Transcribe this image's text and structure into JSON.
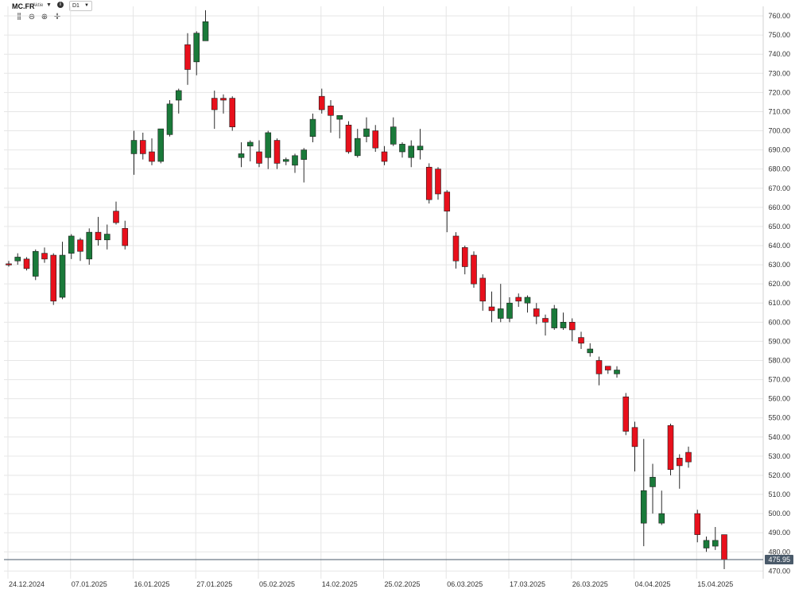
{
  "header": {
    "symbol": "MC.FR",
    "symbol_type": "Aktie",
    "timeframe": "D1",
    "tools": [
      "indicators-icon",
      "zoom-out-icon",
      "zoom-in-icon",
      "crosshair-icon"
    ]
  },
  "colors": {
    "up": "#1a7a3a",
    "down": "#e8101c",
    "grid": "#e6e6e6",
    "last_price": "#4a5a6a"
  },
  "chart_data": {
    "type": "candlestick",
    "title": "",
    "xlabel": "",
    "ylabel": "",
    "ylim": [
      466,
      765
    ],
    "y_ticks": [
      "470.00",
      "480.00",
      "490.00",
      "500.00",
      "510.00",
      "520.00",
      "530.00",
      "540.00",
      "550.00",
      "560.00",
      "570.00",
      "580.00",
      "590.00",
      "600.00",
      "610.00",
      "620.00",
      "630.00",
      "640.00",
      "650.00",
      "660.00",
      "670.00",
      "680.00",
      "690.00",
      "700.00",
      "710.00",
      "720.00",
      "730.00",
      "740.00",
      "750.00",
      "760.00"
    ],
    "x_tick_labels": [
      {
        "label": "24.12.2024",
        "index": 0
      },
      {
        "label": "07.01.2025",
        "index": 7
      },
      {
        "label": "16.01.2025",
        "index": 14
      },
      {
        "label": "27.01.2025",
        "index": 21
      },
      {
        "label": "05.02.2025",
        "index": 28
      },
      {
        "label": "14.02.2025",
        "index": 35
      },
      {
        "label": "25.02.2025",
        "index": 42
      },
      {
        "label": "06.03.2025",
        "index": 49
      },
      {
        "label": "17.03.2025",
        "index": 56
      },
      {
        "label": "26.03.2025",
        "index": 63
      },
      {
        "label": "04.04.2025",
        "index": 70
      },
      {
        "label": "15.04.2025",
        "index": 77
      }
    ],
    "last_price": "475.95",
    "last_value": 475.95,
    "candles": [
      {
        "o": 630.5,
        "h": 632,
        "l": 629,
        "c": 630.0
      },
      {
        "o": 632,
        "h": 636,
        "l": 630,
        "c": 634
      },
      {
        "o": 633,
        "h": 634,
        "l": 627,
        "c": 628
      },
      {
        "o": 624,
        "h": 638,
        "l": 622,
        "c": 637
      },
      {
        "o": 636,
        "h": 639,
        "l": 631,
        "c": 633
      },
      {
        "o": 635,
        "h": 636,
        "l": 609,
        "c": 611
      },
      {
        "o": 613,
        "h": 642,
        "l": 612,
        "c": 635
      },
      {
        "o": 636,
        "h": 646,
        "l": 633,
        "c": 645
      },
      {
        "o": 643,
        "h": 644,
        "l": 632,
        "c": 637
      },
      {
        "o": 633,
        "h": 649,
        "l": 630,
        "c": 647
      },
      {
        "o": 647,
        "h": 655,
        "l": 640,
        "c": 643
      },
      {
        "o": 643,
        "h": 651,
        "l": 638,
        "c": 646
      },
      {
        "o": 658,
        "h": 663,
        "l": 651,
        "c": 652
      },
      {
        "o": 649,
        "h": 653,
        "l": 638,
        "c": 640
      },
      {
        "o": 688,
        "h": 700,
        "l": 677,
        "c": 695
      },
      {
        "o": 695,
        "h": 699,
        "l": 685,
        "c": 688
      },
      {
        "o": 689,
        "h": 696,
        "l": 682,
        "c": 684
      },
      {
        "o": 684,
        "h": 701,
        "l": 683,
        "c": 701
      },
      {
        "o": 698,
        "h": 716,
        "l": 697,
        "c": 714
      },
      {
        "o": 716,
        "h": 722,
        "l": 709,
        "c": 721
      },
      {
        "o": 745,
        "h": 751,
        "l": 724,
        "c": 732
      },
      {
        "o": 736,
        "h": 752,
        "l": 729,
        "c": 751
      },
      {
        "o": 747,
        "h": 763,
        "l": 747,
        "c": 757
      },
      {
        "o": 717,
        "h": 721,
        "l": 701,
        "c": 711
      },
      {
        "o": 717,
        "h": 719,
        "l": 709,
        "c": 716
      },
      {
        "o": 717,
        "h": 718,
        "l": 700,
        "c": 702
      },
      {
        "o": 686,
        "h": 694,
        "l": 681,
        "c": 688
      },
      {
        "o": 692,
        "h": 695,
        "l": 684,
        "c": 694
      },
      {
        "o": 689,
        "h": 695,
        "l": 681,
        "c": 683
      },
      {
        "o": 686,
        "h": 700,
        "l": 680,
        "c": 699
      },
      {
        "o": 695,
        "h": 696,
        "l": 680,
        "c": 683
      },
      {
        "o": 684,
        "h": 686,
        "l": 682,
        "c": 685
      },
      {
        "o": 682,
        "h": 688,
        "l": 678,
        "c": 687
      },
      {
        "o": 685,
        "h": 691,
        "l": 673,
        "c": 690
      },
      {
        "o": 697,
        "h": 709,
        "l": 694,
        "c": 706
      },
      {
        "o": 718,
        "h": 722,
        "l": 709,
        "c": 711
      },
      {
        "o": 713,
        "h": 716,
        "l": 699,
        "c": 708
      },
      {
        "o": 706,
        "h": 708,
        "l": 696,
        "c": 708
      },
      {
        "o": 703,
        "h": 705,
        "l": 688,
        "c": 689
      },
      {
        "o": 687,
        "h": 701,
        "l": 686,
        "c": 696
      },
      {
        "o": 697,
        "h": 707,
        "l": 694,
        "c": 701
      },
      {
        "o": 700,
        "h": 703,
        "l": 689,
        "c": 691
      },
      {
        "o": 689,
        "h": 692,
        "l": 682,
        "c": 684
      },
      {
        "o": 693,
        "h": 707,
        "l": 692,
        "c": 702
      },
      {
        "o": 689,
        "h": 694,
        "l": 686,
        "c": 693
      },
      {
        "o": 686,
        "h": 695,
        "l": 681,
        "c": 692
      },
      {
        "o": 690,
        "h": 701,
        "l": 685,
        "c": 692
      },
      {
        "o": 681,
        "h": 683,
        "l": 662,
        "c": 664
      },
      {
        "o": 680,
        "h": 681,
        "l": 664,
        "c": 667
      },
      {
        "o": 668,
        "h": 669,
        "l": 647,
        "c": 658
      },
      {
        "o": 645,
        "h": 647,
        "l": 628,
        "c": 632
      },
      {
        "o": 639,
        "h": 640,
        "l": 625,
        "c": 629
      },
      {
        "o": 635,
        "h": 637,
        "l": 618,
        "c": 620
      },
      {
        "o": 623,
        "h": 625,
        "l": 606,
        "c": 611
      },
      {
        "o": 608,
        "h": 616,
        "l": 600,
        "c": 606
      },
      {
        "o": 602,
        "h": 620,
        "l": 600,
        "c": 607
      },
      {
        "o": 602,
        "h": 613,
        "l": 600,
        "c": 610
      },
      {
        "o": 613,
        "h": 615,
        "l": 608,
        "c": 611
      },
      {
        "o": 610,
        "h": 614,
        "l": 605,
        "c": 613
      },
      {
        "o": 607,
        "h": 610,
        "l": 599,
        "c": 603
      },
      {
        "o": 602,
        "h": 604,
        "l": 593,
        "c": 600
      },
      {
        "o": 597,
        "h": 609,
        "l": 596,
        "c": 607
      },
      {
        "o": 597,
        "h": 605,
        "l": 596,
        "c": 600
      },
      {
        "o": 600,
        "h": 602,
        "l": 590,
        "c": 596
      },
      {
        "o": 592,
        "h": 595,
        "l": 586,
        "c": 589
      },
      {
        "o": 584,
        "h": 589,
        "l": 582,
        "c": 586
      },
      {
        "o": 580,
        "h": 582,
        "l": 567,
        "c": 573
      },
      {
        "o": 577,
        "h": 577,
        "l": 573,
        "c": 575
      },
      {
        "o": 573,
        "h": 577,
        "l": 571,
        "c": 575
      },
      {
        "o": 561,
        "h": 563,
        "l": 541,
        "c": 543
      },
      {
        "o": 545,
        "h": 548,
        "l": 522,
        "c": 535
      },
      {
        "o": 495,
        "h": 539,
        "l": 483,
        "c": 512
      },
      {
        "o": 514,
        "h": 526,
        "l": 500,
        "c": 519
      },
      {
        "o": 495,
        "h": 512,
        "l": 494,
        "c": 500
      },
      {
        "o": 546,
        "h": 547,
        "l": 520,
        "c": 523
      },
      {
        "o": 529,
        "h": 531,
        "l": 513,
        "c": 525
      },
      {
        "o": 532,
        "h": 535,
        "l": 524,
        "c": 527
      },
      {
        "o": 500,
        "h": 502,
        "l": 485,
        "c": 489
      },
      {
        "o": 482,
        "h": 488,
        "l": 480,
        "c": 486
      },
      {
        "o": 483,
        "h": 493,
        "l": 481,
        "c": 486
      },
      {
        "o": 489,
        "h": 489,
        "l": 471,
        "c": 475.95
      }
    ]
  }
}
